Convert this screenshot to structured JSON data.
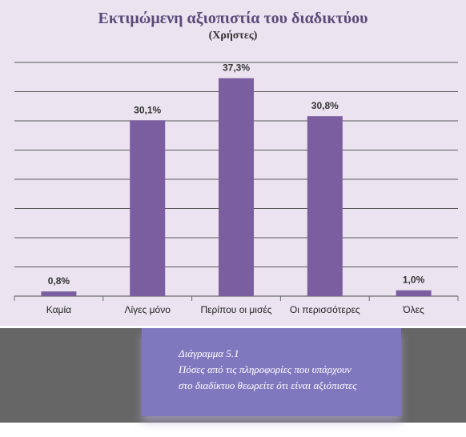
{
  "chart_data": {
    "type": "bar",
    "title": "Εκτιμώμενη αξιοπιστία του διαδικτύου",
    "subtitle": "(Χρήστες)",
    "categories": [
      "Καμία",
      "Λίγες μόνο",
      "Περίπου οι μισές",
      "Οι περισσότερες",
      "Όλες"
    ],
    "values": [
      0.8,
      30.1,
      37.3,
      30.8,
      1.0
    ],
    "data_labels": [
      "0,8%",
      "30,1%",
      "37,3%",
      "30,8%",
      "1,0%"
    ],
    "ylim": [
      0,
      40
    ],
    "grid": true,
    "bar_color": "#7b5ea0",
    "background_color": "#ebe3f0"
  },
  "caption": {
    "line1": "Διάγραμμα 5.1",
    "line2": "Πόσες από τις πληροφορίες που υπάρχουν",
    "line3": "στο  διαδίκτυο θεωρείτε ότι είναι αξιόπιστες"
  }
}
